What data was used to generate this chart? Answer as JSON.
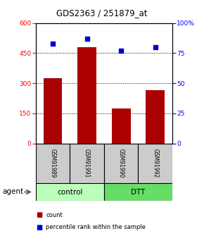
{
  "title": "GDS2363 / 251879_at",
  "samples": [
    "GSM91989",
    "GSM91991",
    "GSM91990",
    "GSM91992"
  ],
  "counts": [
    325,
    480,
    175,
    265
  ],
  "percentiles": [
    83,
    87,
    77,
    80
  ],
  "groups": [
    "control",
    "control",
    "DTT",
    "DTT"
  ],
  "control_color": "#bbffbb",
  "dtt_color": "#66dd66",
  "bar_color": "#aa0000",
  "dot_color": "#0000cc",
  "ylim_left": [
    0,
    600
  ],
  "ylim_right": [
    0,
    100
  ],
  "yticks_left": [
    0,
    150,
    300,
    450,
    600
  ],
  "yticks_right": [
    0,
    25,
    50,
    75,
    100
  ],
  "grid_ticks": [
    150,
    300,
    450
  ],
  "background_color": "#ffffff",
  "sample_box_color": "#cccccc",
  "agent_label": "agent",
  "legend_count_label": "count",
  "legend_pct_label": "percentile rank within the sample"
}
